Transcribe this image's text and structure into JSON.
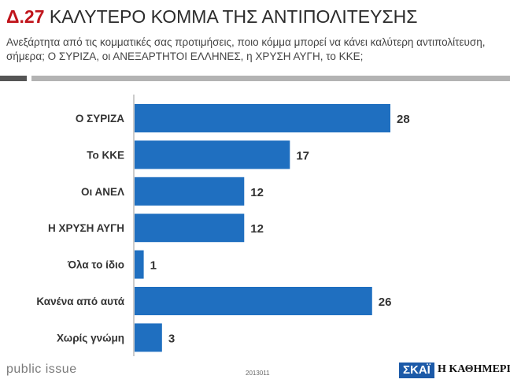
{
  "header": {
    "code": "Δ.27",
    "title": "ΚΑΛΥΤΕΡΟ ΚΟΜΜΑ ΤΗΣ ΑΝΤΙΠΟΛΙΤΕΥΣΗΣ",
    "question": "Ανεξάρτητα από τις κομματικές σας προτιμήσεις, ποιο κόμμα μπορεί να κάνει καλύτερη αντιπολίτευση, σήμερα; Ο ΣΥΡΙΖΑ, οι ΑΝΕΞΑΡΤΗΤΟΙ ΕΛΛΗΝΕΣ, η ΧΡΥΣΗ ΑΥΓΗ, το ΚΚΕ;"
  },
  "colors": {
    "bar": "#1f6fc0",
    "title_code": "#c0141b"
  },
  "chart_data": {
    "type": "bar",
    "orientation": "horizontal",
    "categories": [
      "Ο ΣΥΡΙΖΑ",
      "Το ΚΚΕ",
      "Οι ΑΝΕΛ",
      "Η ΧΡΥΣΗ ΑΥΓΗ",
      "Όλα το ίδιο",
      "Κανένα από αυτά",
      "Χωρίς γνώμη"
    ],
    "values": [
      28,
      17,
      12,
      12,
      1,
      26,
      3
    ],
    "xlim": [
      0,
      28
    ],
    "grid": false,
    "legend": "none"
  },
  "footer": {
    "brand": "public issue",
    "code": "2013011",
    "logo_left": "ΣΚΑΪ",
    "logo_right": "Η ΚΑΘΗΜΕΡΙΝΗ"
  }
}
